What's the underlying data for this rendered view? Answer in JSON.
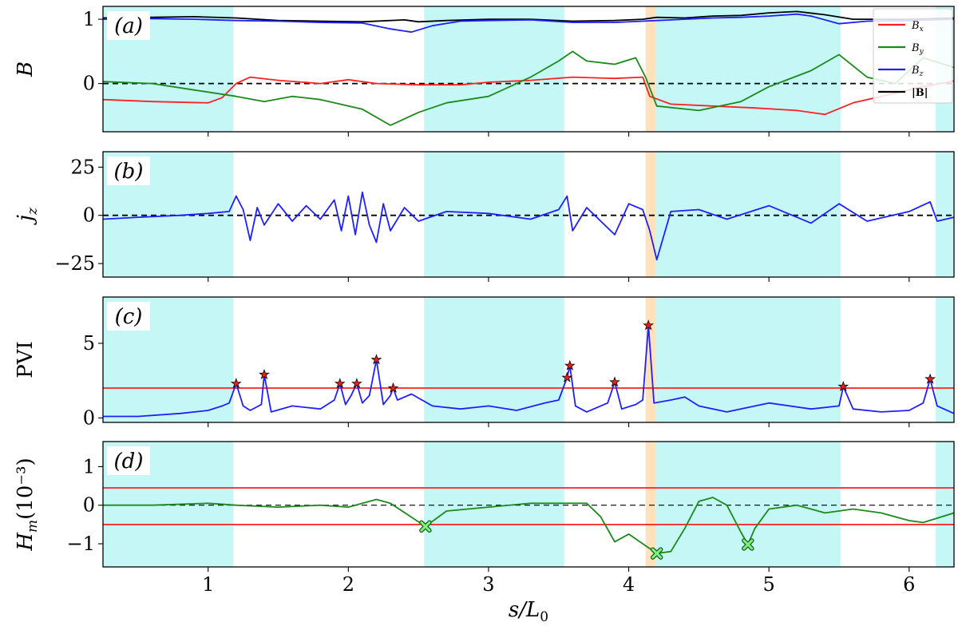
{
  "chart_data": {
    "type": "line",
    "xlabel": "s/L",
    "xlabel_sub": "0",
    "xlim": [
      0.25,
      6.32
    ],
    "xticks": [
      1,
      2,
      3,
      4,
      5,
      6
    ],
    "colors": {
      "Bx": "#ff2020",
      "By": "#1a8a1a",
      "Bz": "#1f1fff",
      "Bmag": "#000000",
      "threshold": "#ff2020",
      "shade": "#c6f7f7",
      "highlight": "#fde2bd",
      "star_fill": "#e8201a",
      "cross_fill": "#7df27d"
    },
    "shaded_regions": [
      [
        0.25,
        1.18
      ],
      [
        2.54,
        3.54
      ],
      [
        4.19,
        5.51
      ],
      [
        6.19,
        6.32
      ]
    ],
    "highlight_region": [
      4.12,
      4.19
    ],
    "panels": [
      {
        "id": "a",
        "label": "(a)",
        "ylabel": "B",
        "ylim": [
          -0.75,
          1.2
        ],
        "yticks": [
          0,
          1
        ],
        "zero_line": true,
        "legend": {
          "position": "top-right",
          "entries": [
            {
              "series": "Bx",
              "label": "B",
              "sub": "x"
            },
            {
              "series": "By",
              "label": "B",
              "sub": "y"
            },
            {
              "series": "Bz",
              "label": "B",
              "sub": "z"
            },
            {
              "series": "Bmag",
              "label": "|B|"
            }
          ]
        },
        "series": [
          {
            "key": "Bmag",
            "x": [
              0.25,
              0.6,
              0.9,
              1.2,
              1.5,
              1.8,
              2.1,
              2.4,
              2.5,
              2.7,
              3.0,
              3.3,
              3.6,
              3.9,
              4.1,
              4.2,
              4.4,
              4.6,
              4.8,
              5.0,
              5.2,
              5.4,
              5.6,
              5.8,
              6.0,
              6.32
            ],
            "y": [
              1.02,
              1.03,
              1.04,
              1.02,
              0.98,
              0.97,
              0.96,
              0.99,
              0.96,
              0.98,
              1.0,
              1.0,
              0.97,
              0.98,
              1.0,
              1.03,
              1.02,
              1.05,
              1.06,
              1.1,
              1.12,
              1.07,
              1.0,
              1.0,
              1.0,
              1.02
            ]
          },
          {
            "key": "Bz",
            "x": [
              0.25,
              0.6,
              0.9,
              1.2,
              1.5,
              1.8,
              2.1,
              2.3,
              2.45,
              2.6,
              2.8,
              3.0,
              3.3,
              3.6,
              3.9,
              4.1,
              4.2,
              4.4,
              4.6,
              4.8,
              5.0,
              5.2,
              5.3,
              5.5,
              5.7,
              6.0,
              6.32
            ],
            "y": [
              1.0,
              1.01,
              1.0,
              0.98,
              0.97,
              0.95,
              0.94,
              0.85,
              0.8,
              0.9,
              0.97,
              0.98,
              0.99,
              0.95,
              0.95,
              0.97,
              0.98,
              1.0,
              1.02,
              1.03,
              1.05,
              1.08,
              1.05,
              0.93,
              0.97,
              0.98,
              1.0
            ]
          },
          {
            "key": "Bx",
            "x": [
              0.25,
              0.6,
              1.0,
              1.1,
              1.2,
              1.3,
              1.5,
              1.8,
              2.0,
              2.2,
              2.5,
              2.8,
              3.0,
              3.3,
              3.6,
              3.9,
              4.1,
              4.15,
              4.3,
              4.6,
              4.9,
              5.2,
              5.4,
              5.6,
              5.9,
              6.1,
              6.32
            ],
            "y": [
              -0.25,
              -0.28,
              -0.3,
              -0.22,
              0.0,
              0.1,
              0.05,
              0.0,
              0.06,
              0.0,
              -0.02,
              -0.02,
              0.02,
              0.05,
              0.1,
              0.08,
              0.1,
              -0.2,
              -0.32,
              -0.35,
              -0.38,
              -0.42,
              -0.48,
              -0.3,
              -0.15,
              -0.05,
              0.04
            ]
          },
          {
            "key": "By",
            "x": [
              0.25,
              0.6,
              0.9,
              1.2,
              1.4,
              1.6,
              1.8,
              2.1,
              2.3,
              2.4,
              2.5,
              2.7,
              3.0,
              3.3,
              3.5,
              3.6,
              3.7,
              3.9,
              4.05,
              4.12,
              4.2,
              4.5,
              4.8,
              5.0,
              5.3,
              5.5,
              5.7,
              5.9,
              6.1,
              6.32
            ],
            "y": [
              0.03,
              0.0,
              -0.1,
              -0.2,
              -0.28,
              -0.2,
              -0.25,
              -0.4,
              -0.65,
              -0.55,
              -0.45,
              -0.3,
              -0.2,
              0.1,
              0.35,
              0.5,
              0.35,
              0.3,
              0.4,
              0.1,
              -0.35,
              -0.42,
              -0.28,
              -0.05,
              0.2,
              0.45,
              0.1,
              0.0,
              0.4,
              0.25
            ]
          }
        ]
      },
      {
        "id": "b",
        "label": "(b)",
        "ylabel": "j",
        "ylabel_sub": "z",
        "ylim": [
          -32,
          33
        ],
        "yticks": [
          25,
          0,
          -25
        ],
        "ytick_labels": [
          "25",
          "0",
          "−25"
        ],
        "zero_line": true,
        "series": [
          {
            "key": "jz",
            "x": [
              0.25,
              0.5,
              0.8,
              1.0,
              1.15,
              1.2,
              1.25,
              1.3,
              1.35,
              1.4,
              1.5,
              1.6,
              1.7,
              1.8,
              1.9,
              1.95,
              2.0,
              2.05,
              2.1,
              2.15,
              2.2,
              2.25,
              2.3,
              2.4,
              2.5,
              2.7,
              3.0,
              3.3,
              3.5,
              3.56,
              3.6,
              3.7,
              3.9,
              4.0,
              4.1,
              4.15,
              4.2,
              4.3,
              4.5,
              4.7,
              5.0,
              5.3,
              5.5,
              5.7,
              6.0,
              6.15,
              6.2,
              6.32
            ],
            "y": [
              -2,
              -1,
              0,
              1,
              2,
              10,
              3,
              -13,
              4,
              -5,
              6,
              -3,
              5,
              -2,
              8,
              -8,
              10,
              -10,
              12,
              -5,
              -14,
              6,
              -8,
              4,
              -3,
              2,
              1,
              -2,
              3,
              10,
              -8,
              4,
              -10,
              6,
              3,
              -8,
              -23,
              2,
              3,
              -2,
              5,
              -4,
              6,
              -3,
              2,
              7,
              -3,
              -1
            ]
          }
        ]
      },
      {
        "id": "c",
        "label": "(c)",
        "ylabel": "PVI",
        "ylim": [
          -0.3,
          8.1
        ],
        "yticks": [
          0,
          5
        ],
        "threshold_lines": [
          2.0
        ],
        "series": [
          {
            "key": "PVI",
            "x": [
              0.25,
              0.5,
              0.8,
              1.0,
              1.1,
              1.15,
              1.2,
              1.25,
              1.3,
              1.38,
              1.4,
              1.45,
              1.6,
              1.8,
              1.9,
              1.94,
              1.98,
              2.02,
              2.06,
              2.1,
              2.15,
              2.2,
              2.25,
              2.3,
              2.32,
              2.35,
              2.45,
              2.6,
              2.8,
              3.0,
              3.2,
              3.4,
              3.5,
              3.56,
              3.58,
              3.62,
              3.7,
              3.85,
              3.9,
              3.95,
              4.05,
              4.1,
              4.14,
              4.18,
              4.3,
              4.4,
              4.5,
              4.7,
              5.0,
              5.3,
              5.5,
              5.53,
              5.6,
              5.8,
              6.0,
              6.1,
              6.15,
              6.2,
              6.32
            ],
            "y": [
              0.1,
              0.1,
              0.3,
              0.5,
              0.8,
              1.0,
              2.3,
              0.8,
              0.5,
              0.9,
              2.9,
              0.4,
              0.8,
              0.6,
              1.2,
              2.3,
              0.9,
              1.5,
              2.3,
              1.0,
              1.5,
              3.9,
              0.9,
              1.5,
              2.0,
              1.2,
              1.6,
              0.8,
              0.6,
              0.8,
              0.5,
              1.0,
              1.2,
              2.7,
              3.5,
              0.8,
              0.4,
              1.0,
              2.4,
              0.6,
              0.9,
              1.2,
              6.2,
              1.0,
              1.2,
              1.4,
              0.8,
              0.4,
              1.0,
              0.6,
              0.8,
              2.1,
              0.6,
              0.4,
              0.5,
              1.0,
              2.6,
              0.8,
              0.3
            ]
          }
        ],
        "markers": {
          "shape": "star",
          "x": [
            1.2,
            1.4,
            1.94,
            2.06,
            2.2,
            2.32,
            3.56,
            3.58,
            3.9,
            4.14,
            5.53,
            6.15
          ],
          "y": [
            2.3,
            2.9,
            2.3,
            2.3,
            3.9,
            2.0,
            2.7,
            3.5,
            2.4,
            6.2,
            2.1,
            2.6
          ]
        }
      },
      {
        "id": "d",
        "label": "(d)",
        "ylabel": "H",
        "ylabel_sub": "m",
        "ylabel_unit": "(10⁻³)",
        "ylim": [
          -1.6,
          1.65
        ],
        "yticks": [
          1,
          0,
          -1
        ],
        "ytick_labels": [
          "1",
          "0",
          "−1"
        ],
        "zero_line": true,
        "threshold_lines": [
          0.45,
          -0.5
        ],
        "series": [
          {
            "key": "Hm",
            "x": [
              0.25,
              0.6,
              1.0,
              1.2,
              1.5,
              1.8,
              2.0,
              2.2,
              2.3,
              2.55,
              2.7,
              3.0,
              3.3,
              3.5,
              3.6,
              3.7,
              3.8,
              3.9,
              4.0,
              4.1,
              4.2,
              4.3,
              4.4,
              4.5,
              4.6,
              4.7,
              4.8,
              4.85,
              4.9,
              5.0,
              5.2,
              5.4,
              5.6,
              5.8,
              6.0,
              6.1,
              6.32
            ],
            "y": [
              0.0,
              0.0,
              0.05,
              0.0,
              -0.05,
              0.0,
              -0.05,
              0.15,
              0.05,
              -0.55,
              -0.15,
              -0.05,
              0.05,
              0.05,
              0.05,
              0.05,
              -0.3,
              -0.95,
              -0.75,
              -1.0,
              -1.25,
              -1.2,
              -0.6,
              0.1,
              0.2,
              0.0,
              -0.7,
              -1.02,
              -0.6,
              -0.1,
              0.0,
              -0.2,
              -0.1,
              -0.2,
              -0.4,
              -0.45,
              -0.2
            ]
          }
        ],
        "markers": {
          "shape": "cross",
          "x": [
            2.55,
            4.2,
            4.85
          ],
          "y": [
            -0.55,
            -1.25,
            -1.02
          ]
        }
      }
    ]
  }
}
